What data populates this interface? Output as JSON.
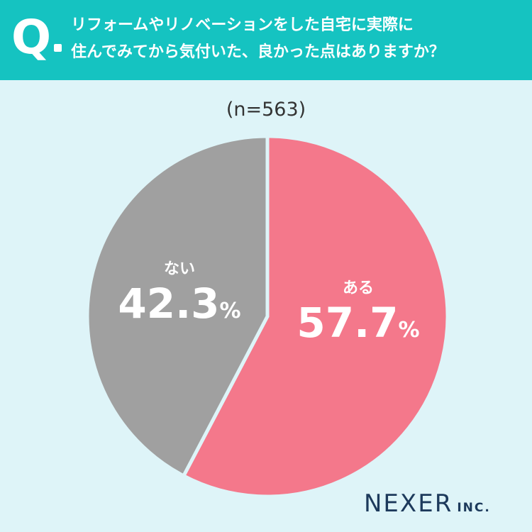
{
  "header": {
    "q_mark": "Q",
    "question_line1": "リフォームやリノベーションをした自宅に実際に",
    "question_line2": "住んでみてから気付いた、良かった点はありますか？"
  },
  "sample_label": "(n=563)",
  "colors": {
    "header_bg": "#15c3c1",
    "background": "#def4f8",
    "aru": "#f4788b",
    "nai": "#a0a0a0"
  },
  "chart_data": {
    "type": "pie",
    "slices": [
      {
        "label": "ある",
        "value": 57.7,
        "display": "57.7",
        "unit": "%",
        "color": "#f4788b"
      },
      {
        "label": "ない",
        "value": 42.3,
        "display": "42.3",
        "unit": "%",
        "color": "#a0a0a0"
      }
    ],
    "start": "12 o'clock",
    "direction": "clockwise"
  },
  "branding": {
    "logo_main": "NEXER",
    "logo_sub": "INC."
  }
}
